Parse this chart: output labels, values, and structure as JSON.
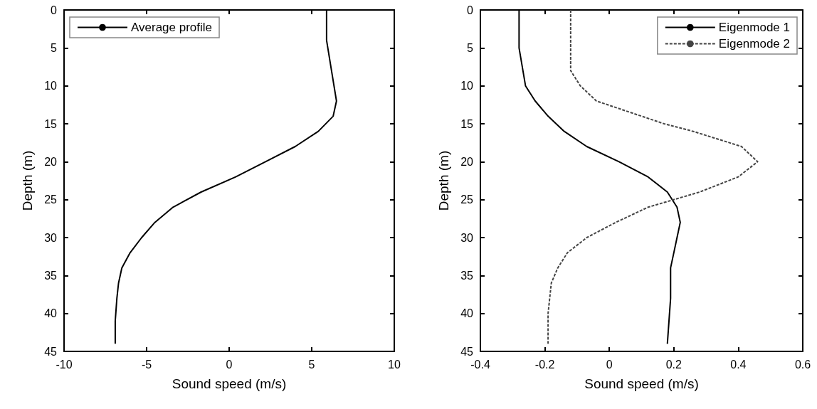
{
  "chart_data": [
    {
      "type": "line",
      "xlabel": "Sound speed (m/s)",
      "ylabel": "Depth (m)",
      "xlim": [
        -10,
        10
      ],
      "xticks": [
        -10,
        -5,
        0,
        5,
        10
      ],
      "ylim": [
        45,
        0
      ],
      "yticks": [
        0,
        5,
        10,
        15,
        20,
        25,
        30,
        35,
        40,
        45
      ],
      "grid": false,
      "legend": "top left",
      "series": [
        {
          "name": "Average profile",
          "color": "#000000",
          "line_style": "solid",
          "x": [
            5.9,
            5.9,
            6.2,
            6.5,
            6.3,
            5.4,
            4.0,
            2.2,
            0.4,
            -1.7,
            -3.4,
            -4.5,
            -5.3,
            -6.0,
            -6.5,
            -6.7,
            -6.8,
            -6.9,
            -6.9
          ],
          "values": [
            0,
            4,
            8,
            12,
            14,
            16,
            18,
            20,
            22,
            24,
            26,
            28,
            30,
            32,
            34,
            36,
            38,
            41,
            44
          ]
        }
      ]
    },
    {
      "type": "line",
      "xlabel": "Sound speed (m/s)",
      "ylabel": "Depth (m)",
      "xlim": [
        -0.4,
        0.6
      ],
      "xticks": [
        -0.4,
        -0.2,
        0,
        0.2,
        0.4,
        0.6
      ],
      "ylim": [
        45,
        0
      ],
      "yticks": [
        0,
        5,
        10,
        15,
        20,
        25,
        30,
        35,
        40,
        45
      ],
      "grid": false,
      "legend": "top right",
      "series": [
        {
          "name": "Eigenmode 1",
          "color": "#000000",
          "line_style": "solid",
          "x": [
            -0.28,
            -0.28,
            -0.26,
            -0.23,
            -0.19,
            -0.14,
            -0.07,
            0.03,
            0.12,
            0.18,
            0.21,
            0.22,
            0.21,
            0.2,
            0.19,
            0.19,
            0.18
          ],
          "values": [
            0,
            5,
            10,
            12,
            14,
            16,
            18,
            20,
            22,
            24,
            26,
            28,
            30,
            32,
            34,
            38,
            44
          ]
        },
        {
          "name": "Eigenmode 2",
          "color": "#444444",
          "line_style": "dashed",
          "x": [
            -0.12,
            -0.12,
            -0.12,
            -0.09,
            -0.04,
            0.1,
            0.17,
            0.26,
            0.41,
            0.46,
            0.4,
            0.28,
            0.12,
            0.02,
            -0.07,
            -0.13,
            -0.16,
            -0.18,
            -0.19,
            -0.19
          ],
          "values": [
            0,
            4,
            8,
            10,
            12,
            14,
            15,
            16,
            18,
            20,
            22,
            24,
            26,
            28,
            30,
            32,
            34,
            36,
            40,
            44
          ]
        }
      ]
    }
  ]
}
